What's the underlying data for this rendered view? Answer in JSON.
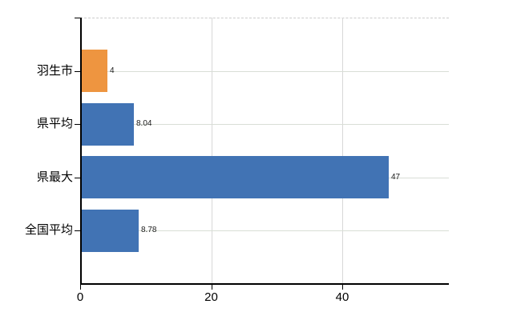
{
  "chart_data": {
    "type": "bar",
    "orientation": "horizontal",
    "title": "",
    "categories": [
      "羽生市",
      "県平均",
      "県最大",
      "全国平均"
    ],
    "values": [
      4,
      8.04,
      47,
      8.78
    ],
    "value_labels": [
      "4",
      "8.04",
      "47",
      "8.78"
    ],
    "bar_colors": [
      "#EE9540",
      "#4173B4",
      "#4173B4",
      "#4173B4"
    ],
    "x_ticks": [
      0,
      20,
      40
    ],
    "x_tick_labels": [
      "0",
      "20",
      "40"
    ],
    "xlim": [
      0,
      56.3
    ],
    "grid": true,
    "legend": "none"
  },
  "colors": {
    "bar_orange": "#EE9540",
    "bar_blue": "#4173B4",
    "gridline": "#d9d9d9",
    "axis": "#000000",
    "background": "#ffffff"
  }
}
